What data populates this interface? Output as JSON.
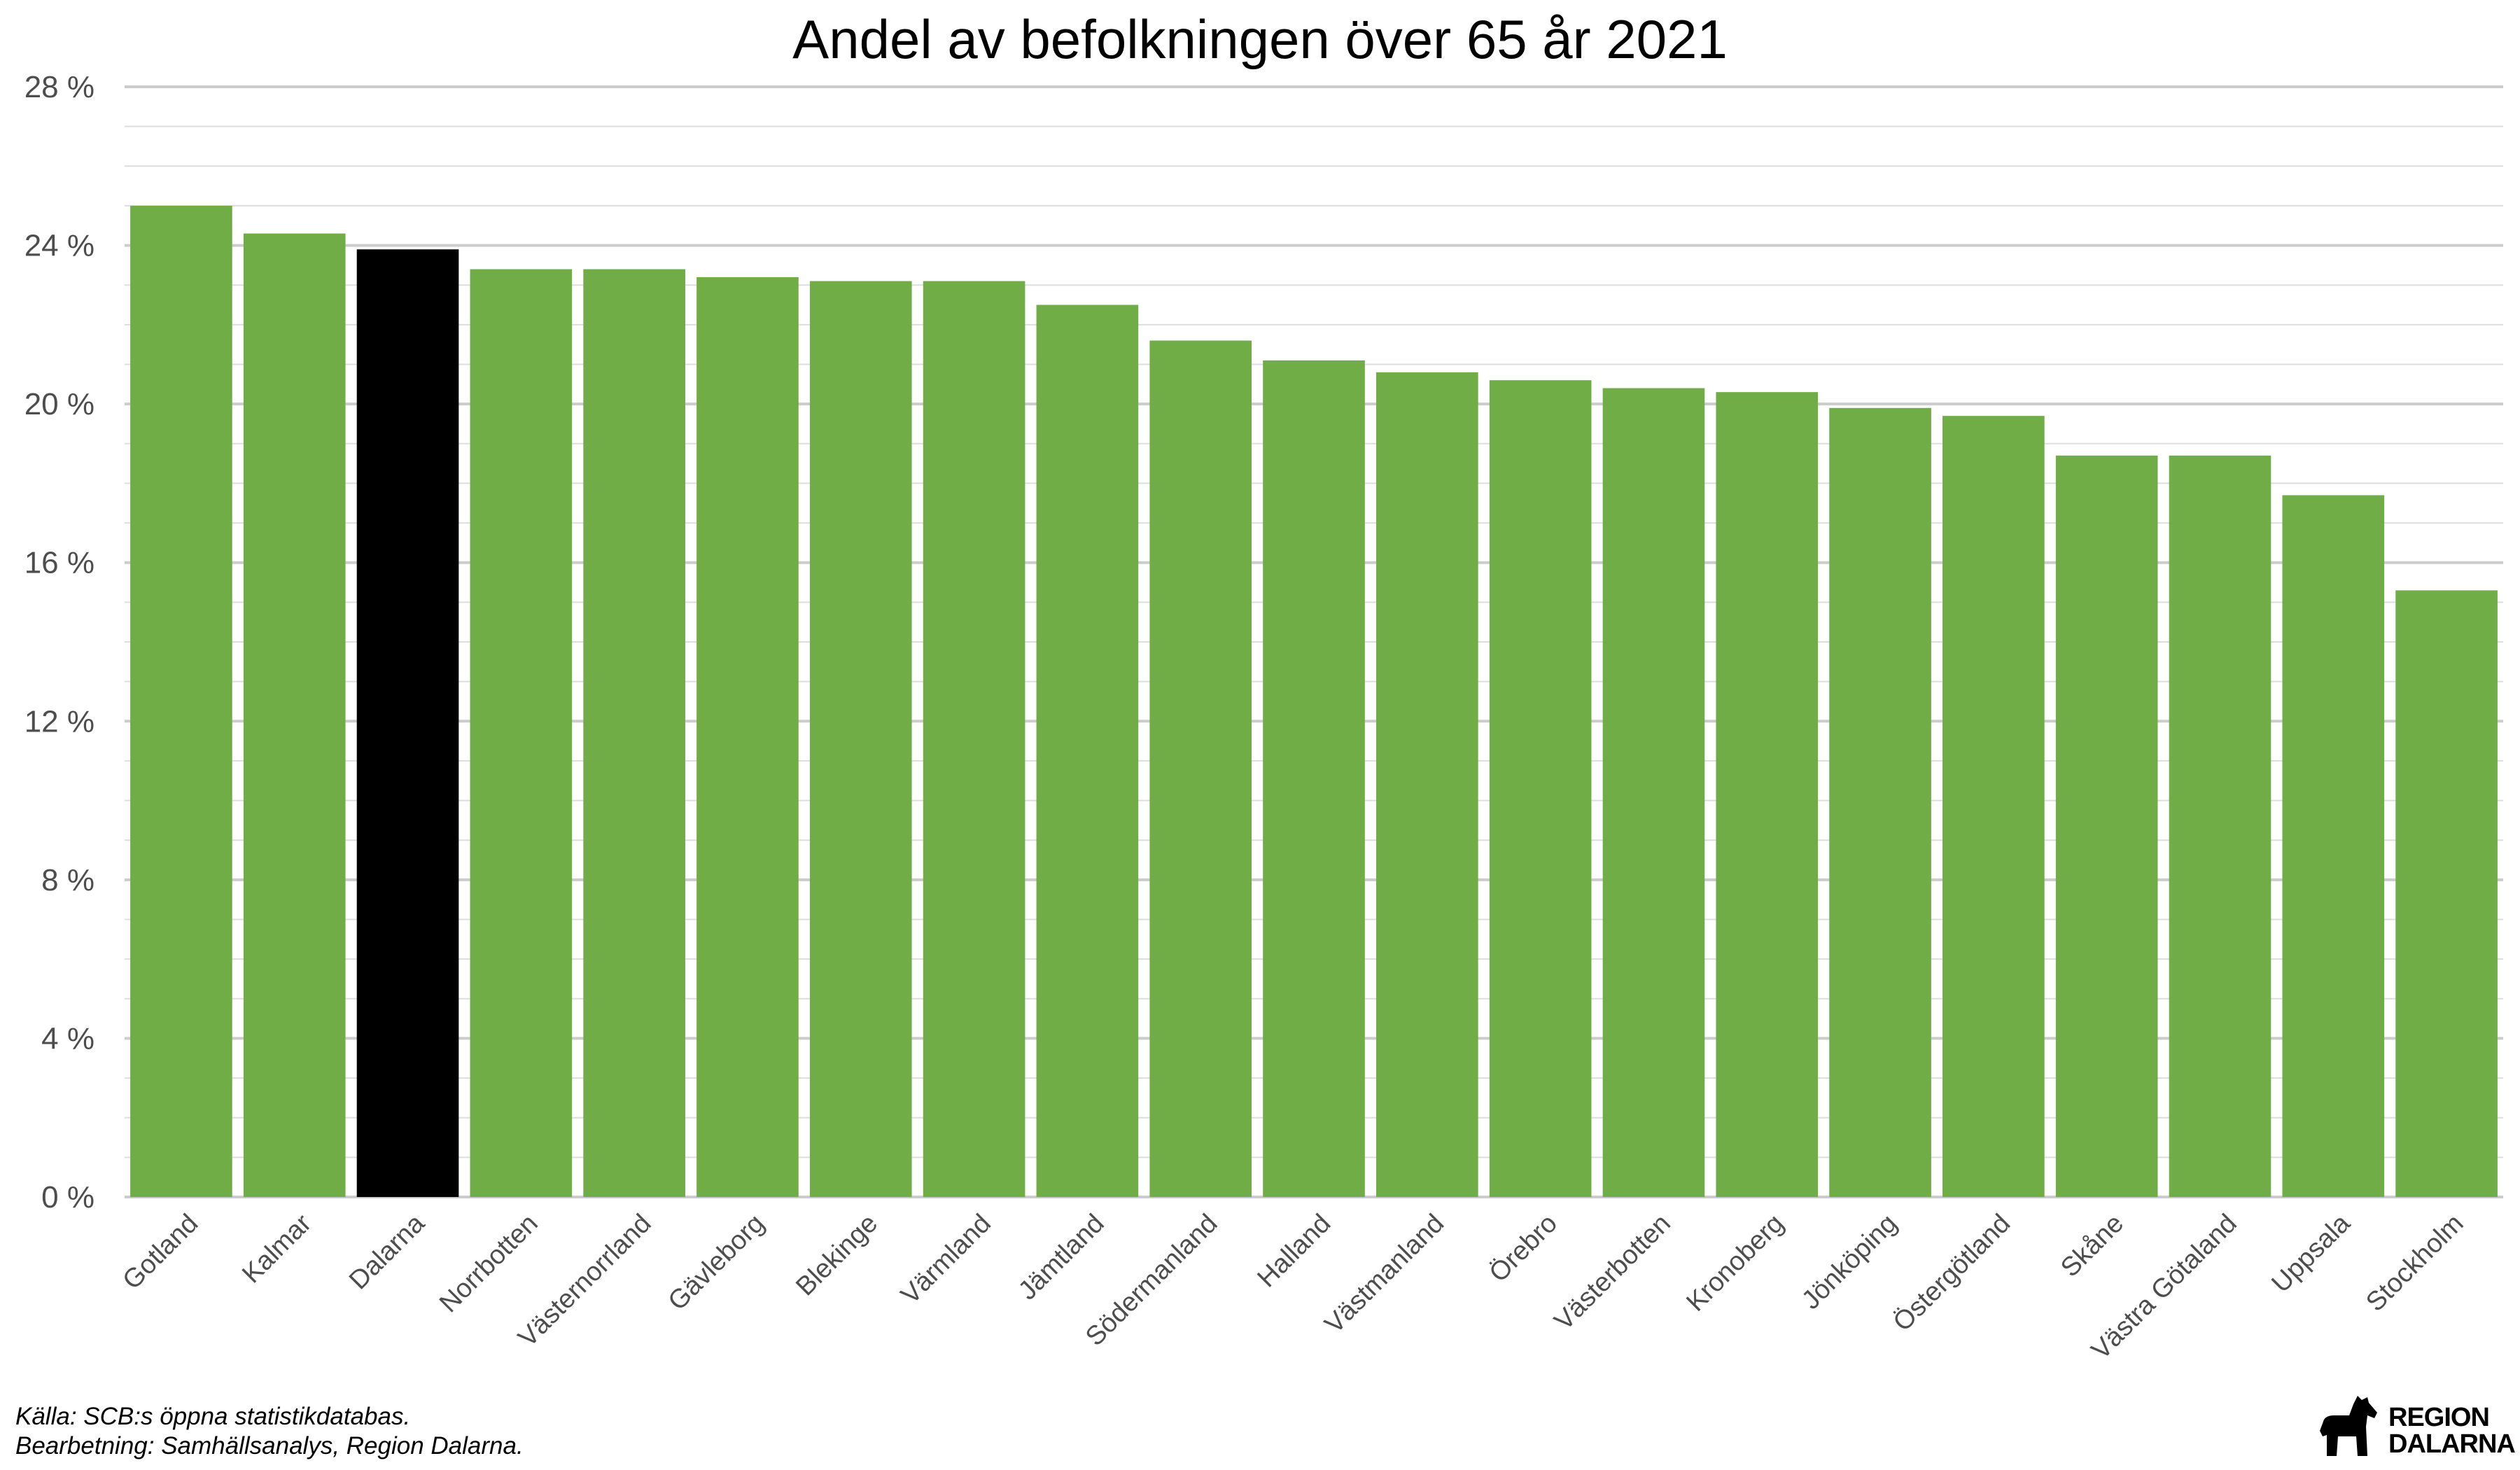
{
  "chart_data": {
    "type": "bar",
    "title": "Andel av befolkningen över 65 år 2021",
    "xlabel": "",
    "ylabel": "",
    "ylim": [
      0,
      28
    ],
    "yticks": [
      0,
      4,
      8,
      12,
      16,
      20,
      24,
      28
    ],
    "ytick_labels": [
      "0 %",
      "4 %",
      "8 %",
      "12 %",
      "16 %",
      "20 %",
      "24 %",
      "28 %"
    ],
    "minor_grid_step": 1,
    "grid": true,
    "categories": [
      "Gotland",
      "Kalmar",
      "Dalarna",
      "Norrbotten",
      "Västernorrland",
      "Gävleborg",
      "Blekinge",
      "Värmland",
      "Jämtland",
      "Södermanland",
      "Halland",
      "Västmanland",
      "Örebro",
      "Västerbotten",
      "Kronoberg",
      "Jönköping",
      "Östergötland",
      "Skåne",
      "Västra Götaland",
      "Uppsala",
      "Stockholm"
    ],
    "values": [
      25.0,
      24.3,
      23.9,
      23.4,
      23.4,
      23.2,
      23.1,
      23.1,
      22.5,
      21.6,
      21.1,
      20.8,
      20.6,
      20.4,
      20.3,
      19.9,
      19.7,
      18.7,
      18.7,
      17.7,
      15.3
    ],
    "highlight_category": "Dalarna",
    "colors": {
      "bar": "#70ad47",
      "highlight": "#000000",
      "grid_major": "#cccccc",
      "grid_minor": "#dddddd"
    }
  },
  "caption": {
    "source": "Källa: SCB:s öppna statistikdatabas.",
    "processing": "Bearbetning: Samhällsanalys, Region Dalarna."
  },
  "logo": {
    "icon": "dala-horse-icon",
    "line1": "REGION",
    "line2": "DALARNA"
  }
}
